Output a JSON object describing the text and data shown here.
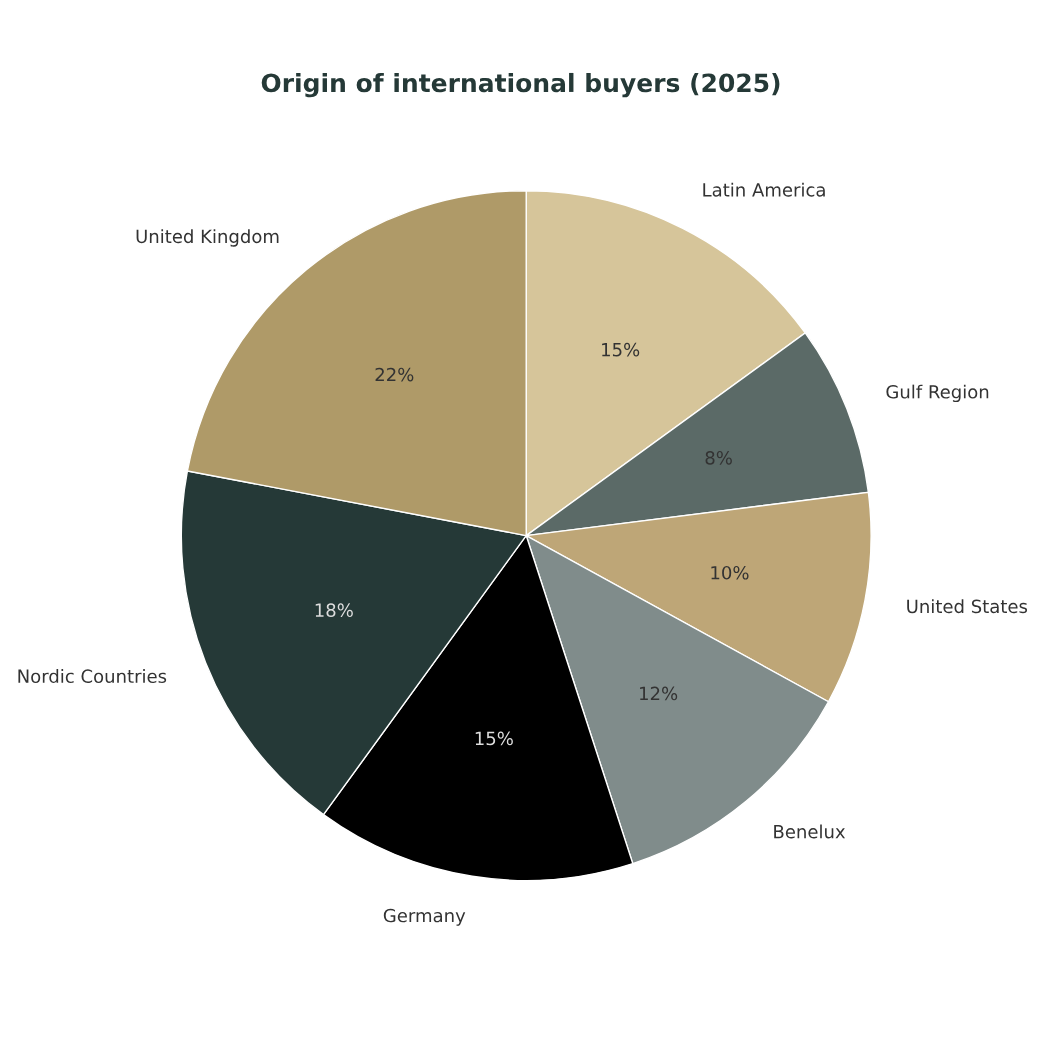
{
  "chart_data": {
    "type": "pie",
    "title": "Origin of international buyers (2025)",
    "categories": [
      "Latin America",
      "Gulf Region",
      "United States",
      "Benelux",
      "Germany",
      "Nordic Countries",
      "United Kingdom"
    ],
    "values": [
      15,
      8,
      10,
      12,
      15,
      18,
      22
    ],
    "value_labels": [
      "15%",
      "8%",
      "10%",
      "12%",
      "15%",
      "18%",
      "22%"
    ],
    "colors": [
      "#d6c59a",
      "#5b6a67",
      "#bea677",
      "#808c8b",
      "#000000",
      "#253937",
      "#af9a68"
    ]
  }
}
